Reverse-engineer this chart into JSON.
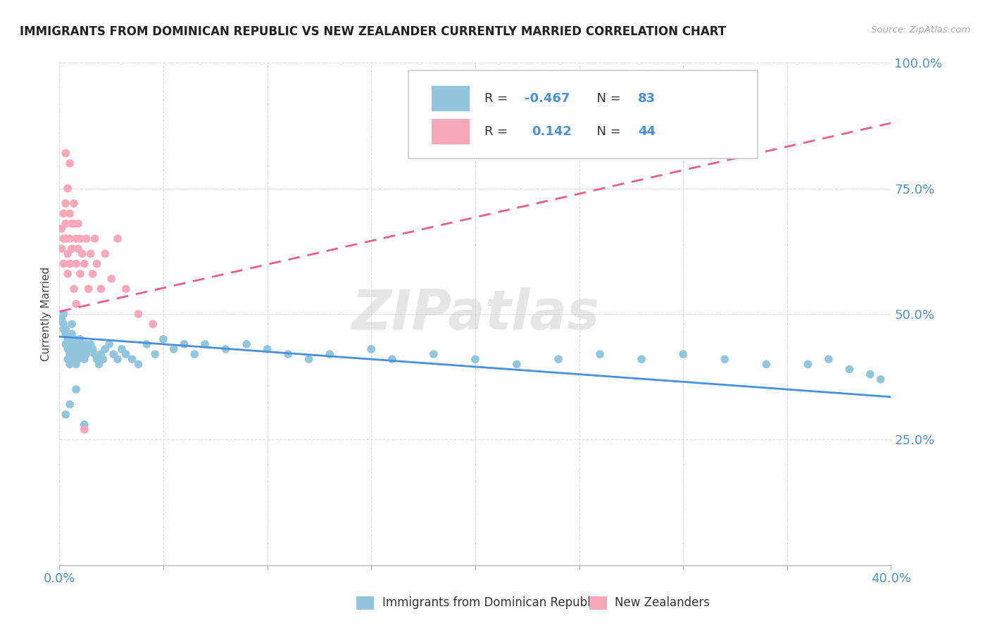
{
  "title": "IMMIGRANTS FROM DOMINICAN REPUBLIC VS NEW ZEALANDER CURRENTLY MARRIED CORRELATION CHART",
  "source": "Source: ZipAtlas.com",
  "ylabel": "Currently Married",
  "xlim": [
    0.0,
    0.4
  ],
  "ylim": [
    0.0,
    1.0
  ],
  "blue_color": "#92C5DE",
  "pink_color": "#F9A8BC",
  "blue_line_color": "#4A90D9",
  "pink_line_color": "#E8608A",
  "tick_color": "#4A90D9",
  "watermark": "ZIPatlas",
  "legend_R_blue": "-0.467",
  "legend_N_blue": "83",
  "legend_R_pink": "0.142",
  "legend_N_pink": "44",
  "blue_x": [
    0.001,
    0.002,
    0.002,
    0.002,
    0.003,
    0.003,
    0.003,
    0.004,
    0.004,
    0.004,
    0.005,
    0.005,
    0.005,
    0.006,
    0.006,
    0.006,
    0.006,
    0.007,
    0.007,
    0.007,
    0.008,
    0.008,
    0.008,
    0.009,
    0.009,
    0.01,
    0.01,
    0.01,
    0.011,
    0.011,
    0.012,
    0.012,
    0.013,
    0.013,
    0.014,
    0.015,
    0.016,
    0.017,
    0.018,
    0.019,
    0.02,
    0.021,
    0.022,
    0.024,
    0.026,
    0.028,
    0.03,
    0.032,
    0.035,
    0.038,
    0.042,
    0.046,
    0.05,
    0.055,
    0.06,
    0.065,
    0.07,
    0.08,
    0.09,
    0.1,
    0.11,
    0.12,
    0.13,
    0.15,
    0.16,
    0.18,
    0.2,
    0.22,
    0.24,
    0.26,
    0.28,
    0.3,
    0.32,
    0.34,
    0.36,
    0.37,
    0.38,
    0.39,
    0.395,
    0.003,
    0.005,
    0.008,
    0.012
  ],
  "blue_y": [
    0.49,
    0.48,
    0.47,
    0.5,
    0.46,
    0.44,
    0.47,
    0.43,
    0.45,
    0.41,
    0.44,
    0.42,
    0.4,
    0.48,
    0.46,
    0.44,
    0.42,
    0.45,
    0.43,
    0.41,
    0.44,
    0.42,
    0.4,
    0.43,
    0.41,
    0.45,
    0.43,
    0.42,
    0.44,
    0.42,
    0.43,
    0.41,
    0.44,
    0.42,
    0.43,
    0.44,
    0.43,
    0.42,
    0.41,
    0.4,
    0.42,
    0.41,
    0.43,
    0.44,
    0.42,
    0.41,
    0.43,
    0.42,
    0.41,
    0.4,
    0.44,
    0.42,
    0.45,
    0.43,
    0.44,
    0.42,
    0.44,
    0.43,
    0.44,
    0.43,
    0.42,
    0.41,
    0.42,
    0.43,
    0.41,
    0.42,
    0.41,
    0.4,
    0.41,
    0.42,
    0.41,
    0.42,
    0.41,
    0.4,
    0.4,
    0.41,
    0.39,
    0.38,
    0.37,
    0.3,
    0.32,
    0.35,
    0.28
  ],
  "pink_x": [
    0.001,
    0.001,
    0.002,
    0.002,
    0.002,
    0.003,
    0.003,
    0.003,
    0.004,
    0.004,
    0.004,
    0.005,
    0.005,
    0.005,
    0.006,
    0.006,
    0.007,
    0.007,
    0.007,
    0.008,
    0.008,
    0.009,
    0.009,
    0.01,
    0.01,
    0.011,
    0.012,
    0.013,
    0.014,
    0.015,
    0.016,
    0.017,
    0.018,
    0.02,
    0.022,
    0.025,
    0.028,
    0.032,
    0.038,
    0.045,
    0.003,
    0.005,
    0.008,
    0.012
  ],
  "pink_y": [
    0.63,
    0.67,
    0.7,
    0.65,
    0.6,
    0.72,
    0.68,
    0.65,
    0.62,
    0.58,
    0.75,
    0.7,
    0.65,
    0.6,
    0.68,
    0.63,
    0.72,
    0.68,
    0.55,
    0.65,
    0.6,
    0.68,
    0.63,
    0.65,
    0.58,
    0.62,
    0.6,
    0.65,
    0.55,
    0.62,
    0.58,
    0.65,
    0.6,
    0.55,
    0.62,
    0.57,
    0.65,
    0.55,
    0.5,
    0.48,
    0.82,
    0.8,
    0.52,
    0.27
  ],
  "blue_trend_x": [
    0.0,
    0.4
  ],
  "blue_trend_y": [
    0.455,
    0.335
  ],
  "pink_trend_x": [
    0.0,
    0.4
  ],
  "pink_trend_y": [
    0.505,
    0.88
  ]
}
